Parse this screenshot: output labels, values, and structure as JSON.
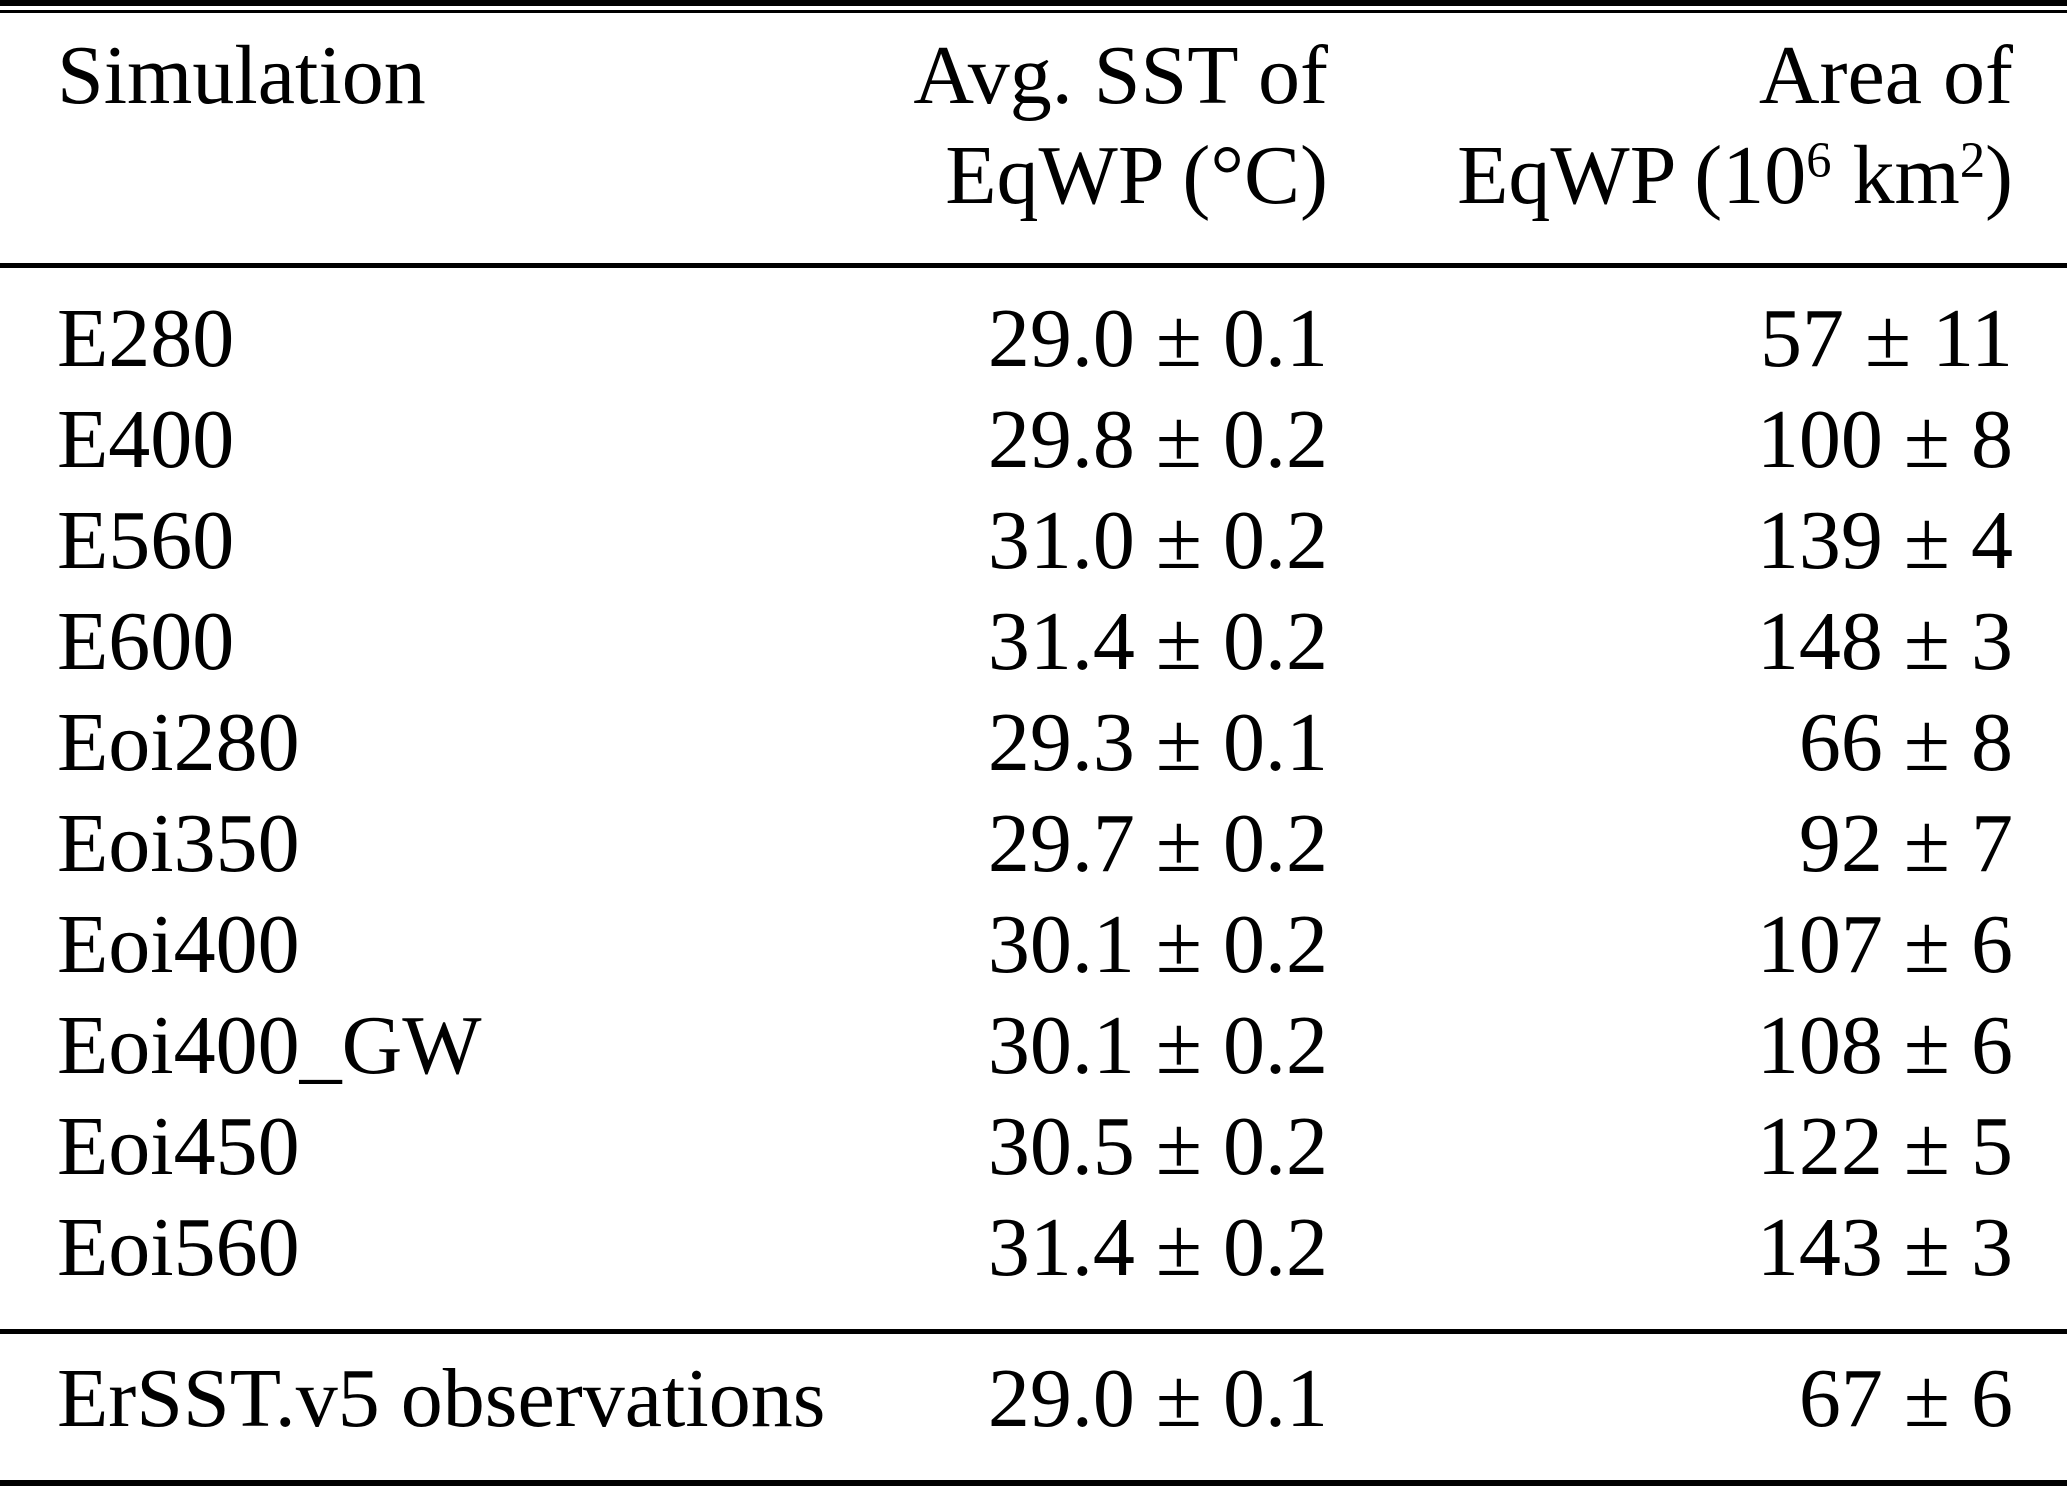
{
  "table": {
    "header": {
      "col1": "Simulation",
      "col2_line1": "Avg. SST of",
      "col2_line2": "EqWP (°C)",
      "col3_line1": "Area of",
      "col3_line2": {
        "pre": "EqWP (10",
        "exp1": "6",
        "mid": " km",
        "exp2": "2",
        "post": ")"
      }
    },
    "rows": [
      {
        "simulation": "E280",
        "avg_sst": "29.0 ± 0.1",
        "area": "57 ± 11"
      },
      {
        "simulation": "E400",
        "avg_sst": "29.8 ± 0.2",
        "area": "100 ± 8"
      },
      {
        "simulation": "E560",
        "avg_sst": "31.0 ± 0.2",
        "area": "139 ± 4"
      },
      {
        "simulation": "E600",
        "avg_sst": "31.4 ± 0.2",
        "area": "148 ± 3"
      },
      {
        "simulation": "Eoi280",
        "avg_sst": "29.3 ± 0.1",
        "area": "66 ± 8"
      },
      {
        "simulation": "Eoi350",
        "avg_sst": "29.7 ± 0.2",
        "area": "92 ± 7"
      },
      {
        "simulation": "Eoi400",
        "avg_sst": "30.1 ± 0.2",
        "area": "107 ± 6"
      },
      {
        "simulation": "Eoi400_GW",
        "avg_sst": "30.1 ± 0.2",
        "area": "108 ± 6"
      },
      {
        "simulation": "Eoi450",
        "avg_sst": "30.5 ± 0.2",
        "area": "122 ± 5"
      },
      {
        "simulation": "Eoi560",
        "avg_sst": "31.4 ± 0.2",
        "area": "143 ± 3"
      }
    ],
    "footer": {
      "simulation": "ErSST.v5 observations",
      "avg_sst": "29.0 ± 0.1",
      "area": "67 ± 6"
    }
  },
  "colors": {
    "background": "#ffffff",
    "text": "#000000",
    "rule": "#000000"
  }
}
